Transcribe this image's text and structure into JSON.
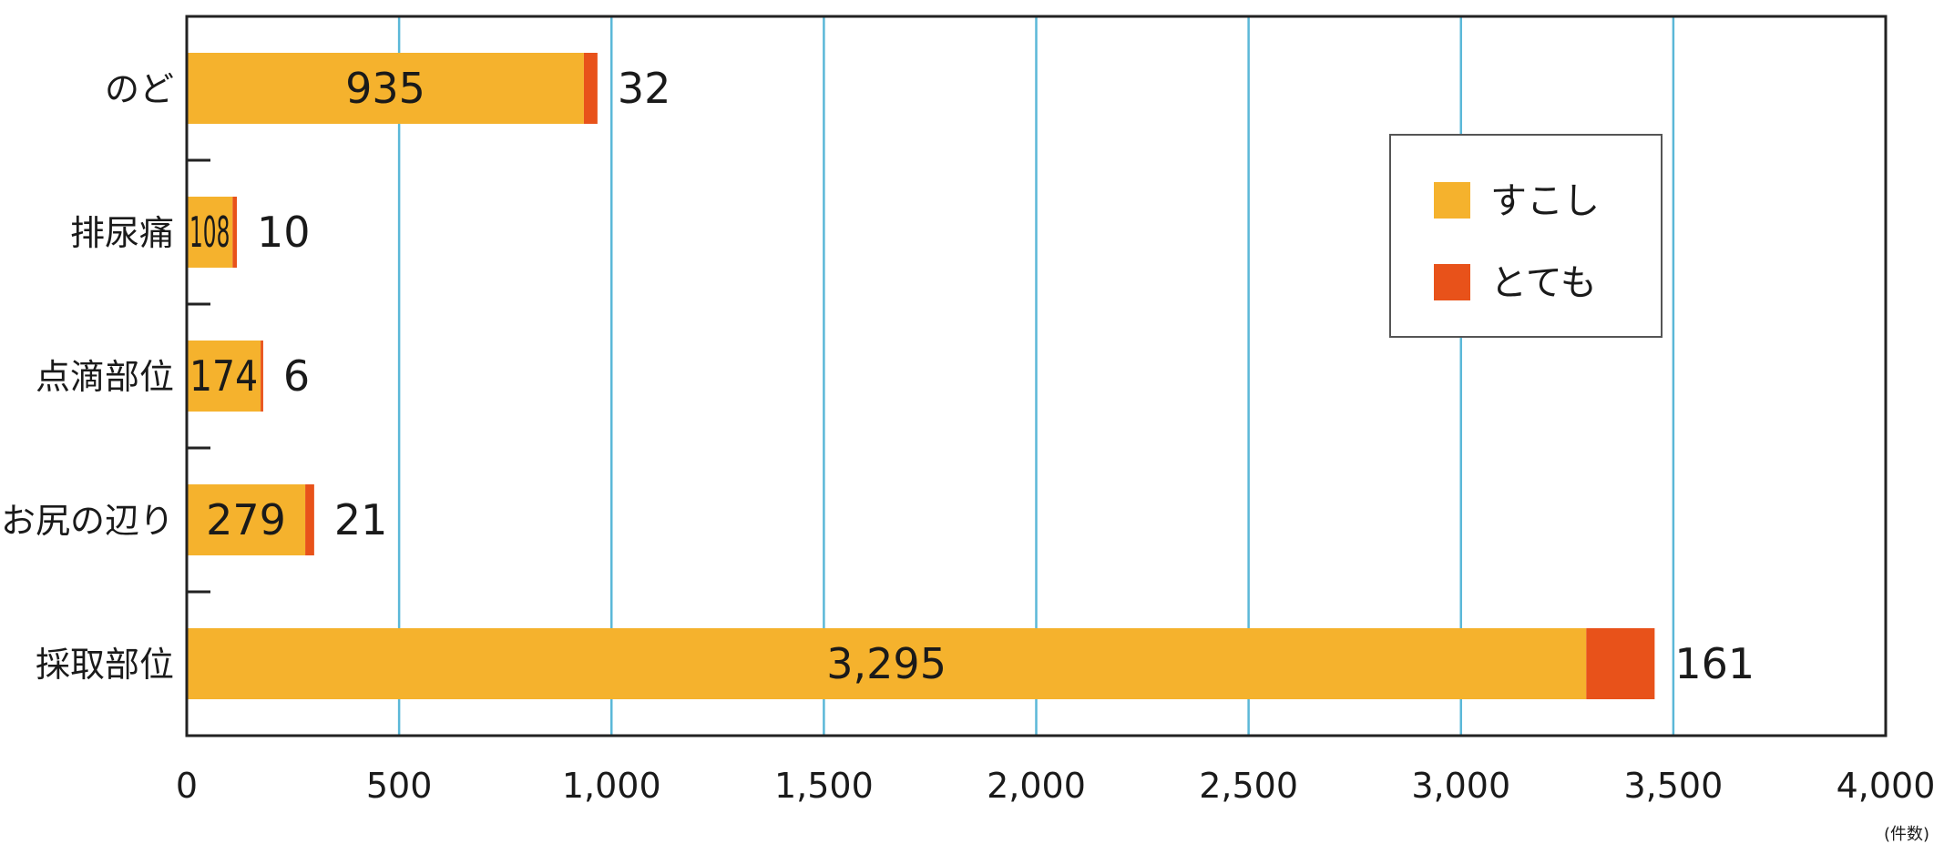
{
  "chart_data": {
    "type": "bar",
    "orientation": "horizontal",
    "stacked": true,
    "categories": [
      "のど",
      "排尿痛",
      "点滴部位",
      "お尻の辺り",
      "採取部位"
    ],
    "series": [
      {
        "name": "すこし",
        "color": "#F5B22D",
        "values": [
          935,
          108,
          174,
          279,
          3295
        ],
        "labels": [
          "935",
          "108",
          "174",
          "279",
          "3,295"
        ]
      },
      {
        "name": "とても",
        "color": "#E8521A",
        "values": [
          32,
          10,
          6,
          21,
          161
        ],
        "labels": [
          "32",
          "10",
          "6",
          "21",
          "161"
        ]
      }
    ],
    "xlim": [
      0,
      4000
    ],
    "x_ticks": [
      0,
      500,
      1000,
      1500,
      2000,
      2500,
      3000,
      3500,
      4000
    ],
    "x_tick_labels": [
      "0",
      "500",
      "1,000",
      "1,500",
      "2,000",
      "2,500",
      "3,000",
      "3,500",
      "4,000"
    ],
    "x_unit": "(件数)",
    "grid": "vertical",
    "grid_color": "#5BB8D8",
    "legend_position": "top-right"
  }
}
